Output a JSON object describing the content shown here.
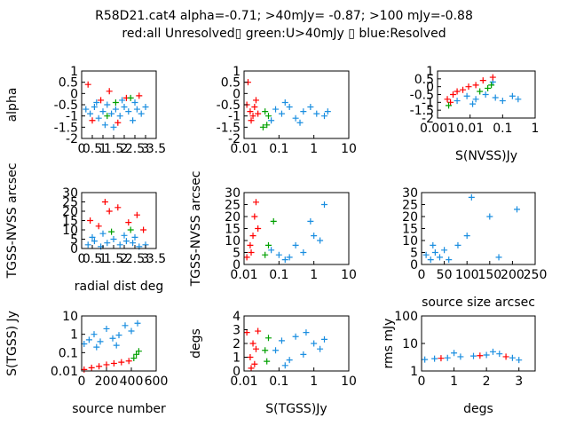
{
  "title_line1": "R58D21.cat4 alpha=-0.71; >40mJy= -0.87; >100 mJy=-0.88",
  "title_line2": "red:all Unresolved▯ green:U>40mJy ▯ blue:Resolved",
  "colors": {
    "red": "#ff0000",
    "green": "#00a000",
    "blue": "#1a8ee0"
  },
  "chart_data": [
    {
      "type": "scatter",
      "ylabel": "alpha",
      "xlabel": "",
      "xscale": "linear",
      "xlim": [
        0,
        3.5
      ],
      "ylim": [
        -2,
        1
      ],
      "xticks": [
        "0",
        "0.5",
        "1",
        "1.5",
        "2",
        "2.5",
        "3",
        "3.5"
      ],
      "yticks": [
        "-2",
        "-1.5",
        "-1",
        "-0.5",
        "0",
        "0.5",
        "1"
      ],
      "series": [
        {
          "color": "blue",
          "points": [
            [
              0.2,
              -0.7
            ],
            [
              0.4,
              -0.9
            ],
            [
              0.6,
              -0.6
            ],
            [
              0.8,
              -1.1
            ],
            [
              1.0,
              -0.8
            ],
            [
              1.2,
              -0.5
            ],
            [
              1.4,
              -0.9
            ],
            [
              1.6,
              -0.7
            ],
            [
              1.8,
              -1.0
            ],
            [
              2.0,
              -0.6
            ],
            [
              2.2,
              -0.8
            ],
            [
              2.4,
              -1.2
            ],
            [
              2.6,
              -0.7
            ],
            [
              2.8,
              -0.9
            ],
            [
              3.0,
              -0.6
            ],
            [
              1.1,
              -1.4
            ],
            [
              1.9,
              -0.3
            ],
            [
              2.5,
              -0.4
            ],
            [
              0.7,
              -0.4
            ],
            [
              1.5,
              -1.5
            ]
          ]
        },
        {
          "color": "red",
          "points": [
            [
              0.3,
              0.4
            ],
            [
              1.3,
              0.1
            ],
            [
              2.1,
              -0.2
            ],
            [
              0.9,
              -0.3
            ],
            [
              2.7,
              -0.1
            ],
            [
              1.7,
              -1.3
            ],
            [
              0.5,
              -1.2
            ]
          ]
        },
        {
          "color": "green",
          "points": [
            [
              1.2,
              -1.0
            ],
            [
              2.3,
              -0.2
            ],
            [
              1.6,
              -0.4
            ]
          ]
        }
      ]
    },
    {
      "type": "scatter",
      "ylabel": "",
      "xlabel": "",
      "xscale": "log",
      "xlim": [
        0.01,
        10
      ],
      "ylim": [
        -2,
        1
      ],
      "xticks": [
        "0.01",
        "0.1",
        "1",
        "10"
      ],
      "yticks": [
        "-2",
        "-1.5",
        "-1",
        "-0.5",
        "0",
        "0.5",
        "1"
      ],
      "series": [
        {
          "color": "blue",
          "points": [
            [
              0.08,
              -0.7
            ],
            [
              0.12,
              -0.9
            ],
            [
              0.2,
              -0.6
            ],
            [
              0.3,
              -1.1
            ],
            [
              0.5,
              -0.8
            ],
            [
              0.8,
              -0.6
            ],
            [
              1.2,
              -0.9
            ],
            [
              2.0,
              -1.0
            ],
            [
              0.06,
              -1.2
            ],
            [
              0.15,
              -0.4
            ],
            [
              0.4,
              -1.3
            ],
            [
              2.5,
              -0.8
            ]
          ]
        },
        {
          "color": "red",
          "points": [
            [
              0.012,
              -0.5
            ],
            [
              0.015,
              -0.8
            ],
            [
              0.018,
              -1.0
            ],
            [
              0.02,
              -0.6
            ],
            [
              0.025,
              -0.9
            ],
            [
              0.013,
              0.5
            ],
            [
              0.016,
              -1.2
            ],
            [
              0.022,
              -0.3
            ]
          ]
        },
        {
          "color": "green",
          "points": [
            [
              0.04,
              -0.8
            ],
            [
              0.05,
              -1.0
            ],
            [
              0.045,
              -1.4
            ],
            [
              0.035,
              -1.5
            ]
          ]
        }
      ]
    },
    {
      "type": "scatter",
      "ylabel": "",
      "xlabel": "S(NVSS)Jy",
      "xscale": "log",
      "xlim": [
        0.001,
        1
      ],
      "ylim": [
        -2,
        1
      ],
      "xticks": [
        "0.001",
        "0.01",
        "0.1",
        "1"
      ],
      "yticks": [
        "-2",
        "-1.5",
        "-1",
        "-0.5",
        "0",
        "0.5",
        "1"
      ],
      "series": [
        {
          "color": "blue",
          "points": [
            [
              0.004,
              -0.9
            ],
            [
              0.008,
              -0.6
            ],
            [
              0.015,
              -0.8
            ],
            [
              0.03,
              -0.5
            ],
            [
              0.06,
              -0.7
            ],
            [
              0.1,
              -0.9
            ],
            [
              0.2,
              -0.6
            ],
            [
              0.3,
              -0.8
            ],
            [
              0.05,
              0.3
            ],
            [
              0.012,
              -1.1
            ]
          ]
        },
        {
          "color": "red",
          "points": [
            [
              0.002,
              -0.8
            ],
            [
              0.003,
              -0.5
            ],
            [
              0.004,
              -0.3
            ],
            [
              0.006,
              -0.2
            ],
            [
              0.009,
              0.0
            ],
            [
              0.015,
              0.1
            ],
            [
              0.025,
              0.4
            ],
            [
              0.05,
              0.6
            ],
            [
              0.0025,
              -1.0
            ]
          ]
        },
        {
          "color": "green",
          "points": [
            [
              0.02,
              -0.3
            ],
            [
              0.035,
              -0.1
            ],
            [
              0.045,
              0.1
            ],
            [
              0.0022,
              -1.2
            ]
          ]
        }
      ]
    },
    {
      "type": "scatter",
      "ylabel": "TGSS-NVSS arcsec",
      "xlabel": "radial dist deg",
      "xscale": "linear",
      "xlim": [
        0,
        3.5
      ],
      "ylim": [
        0,
        30
      ],
      "xticks": [
        "0",
        "0.5",
        "1",
        "1.5",
        "2",
        "2.5",
        "3",
        "3.5"
      ],
      "yticks": [
        "0",
        "5",
        "10",
        "15",
        "20",
        "25",
        "30"
      ],
      "series": [
        {
          "color": "blue",
          "points": [
            [
              0.3,
              2
            ],
            [
              0.6,
              4
            ],
            [
              0.9,
              1
            ],
            [
              1.2,
              3
            ],
            [
              1.5,
              5
            ],
            [
              1.8,
              2
            ],
            [
              2.1,
              4
            ],
            [
              2.4,
              3
            ],
            [
              2.7,
              1
            ],
            [
              3.0,
              2
            ],
            [
              1.0,
              8
            ],
            [
              2.0,
              7
            ],
            [
              0.5,
              6
            ],
            [
              2.5,
              6
            ]
          ]
        },
        {
          "color": "red",
          "points": [
            [
              0.4,
              15
            ],
            [
              0.8,
              12
            ],
            [
              1.3,
              20
            ],
            [
              1.7,
              22
            ],
            [
              2.2,
              14
            ],
            [
              2.6,
              18
            ],
            [
              1.1,
              25
            ],
            [
              2.9,
              10
            ]
          ]
        },
        {
          "color": "green",
          "points": [
            [
              1.4,
              9
            ],
            [
              2.3,
              10
            ]
          ]
        }
      ]
    },
    {
      "type": "scatter",
      "ylabel": "TGSS-NVSS arcsec",
      "xlabel": "",
      "xscale": "log",
      "xlim": [
        0.01,
        10
      ],
      "ylim": [
        0,
        30
      ],
      "xticks": [
        "0.01",
        "0.1",
        "1",
        "10"
      ],
      "yticks": [
        "0",
        "5",
        "10",
        "15",
        "20",
        "25",
        "30"
      ],
      "series": [
        {
          "color": "blue",
          "points": [
            [
              0.06,
              6
            ],
            [
              0.1,
              4
            ],
            [
              0.2,
              3
            ],
            [
              0.3,
              8
            ],
            [
              0.5,
              5
            ],
            [
              1.0,
              12
            ],
            [
              2.0,
              25
            ],
            [
              0.8,
              18
            ],
            [
              0.15,
              2
            ],
            [
              1.5,
              10
            ]
          ]
        },
        {
          "color": "red",
          "points": [
            [
              0.012,
              3
            ],
            [
              0.015,
              8
            ],
            [
              0.018,
              12
            ],
            [
              0.02,
              20
            ],
            [
              0.022,
              26
            ],
            [
              0.016,
              5
            ],
            [
              0.025,
              15
            ]
          ]
        },
        {
          "color": "green",
          "points": [
            [
              0.04,
              4
            ],
            [
              0.05,
              8
            ],
            [
              0.07,
              18
            ]
          ]
        }
      ]
    },
    {
      "type": "scatter",
      "ylabel": "",
      "xlabel": "source size arcsec",
      "xscale": "linear",
      "xlim": [
        0,
        250
      ],
      "ylim": [
        0,
        30
      ],
      "xticks": [
        "0",
        "50",
        "100",
        "150",
        "200",
        "250"
      ],
      "yticks": [
        "0",
        "5",
        "10",
        "15",
        "20",
        "25",
        "30"
      ],
      "series": [
        {
          "color": "blue",
          "points": [
            [
              10,
              4
            ],
            [
              20,
              2
            ],
            [
              30,
              5
            ],
            [
              40,
              3
            ],
            [
              50,
              6
            ],
            [
              60,
              2
            ],
            [
              80,
              8
            ],
            [
              100,
              12
            ],
            [
              110,
              28
            ],
            [
              150,
              20
            ],
            [
              210,
              23
            ],
            [
              170,
              3
            ],
            [
              25,
              8
            ]
          ]
        },
        {
          "color": "red",
          "points": []
        },
        {
          "color": "green",
          "points": []
        }
      ]
    },
    {
      "type": "scatter",
      "ylabel": "S(TGSS) Jy",
      "xlabel": "source number",
      "xscale": "linear",
      "yscale": "log",
      "xlim": [
        0,
        600
      ],
      "ylim": [
        0.01,
        10
      ],
      "xticks": [
        "0",
        "200",
        "400",
        "600"
      ],
      "yticks": [
        "0.01",
        "0.1",
        "1",
        "10"
      ],
      "series": [
        {
          "color": "blue",
          "points": [
            [
              20,
              0.3
            ],
            [
              60,
              0.5
            ],
            [
              100,
              1.0
            ],
            [
              150,
              0.4
            ],
            [
              200,
              2.0
            ],
            [
              250,
              0.6
            ],
            [
              300,
              0.9
            ],
            [
              350,
              3.0
            ],
            [
              400,
              1.5
            ],
            [
              450,
              4.0
            ],
            [
              120,
              0.2
            ],
            [
              280,
              0.25
            ]
          ]
        },
        {
          "color": "red",
          "points": [
            [
              20,
              0.012
            ],
            [
              80,
              0.015
            ],
            [
              140,
              0.018
            ],
            [
              200,
              0.022
            ],
            [
              260,
              0.026
            ],
            [
              320,
              0.03
            ],
            [
              380,
              0.035
            ]
          ]
        },
        {
          "color": "green",
          "points": [
            [
              420,
              0.05
            ],
            [
              440,
              0.08
            ],
            [
              460,
              0.12
            ]
          ]
        }
      ]
    },
    {
      "type": "scatter",
      "ylabel": "degs",
      "xlabel": "S(TGSS)Jy",
      "xscale": "log",
      "xlim": [
        0.01,
        10
      ],
      "ylim": [
        0,
        4
      ],
      "xticks": [
        "0.01",
        "0.1",
        "1",
        "10"
      ],
      "yticks": [
        "0",
        "1",
        "2",
        "3",
        "4"
      ],
      "series": [
        {
          "color": "blue",
          "points": [
            [
              0.08,
              1.5
            ],
            [
              0.12,
              2.2
            ],
            [
              0.2,
              0.8
            ],
            [
              0.3,
              2.5
            ],
            [
              0.5,
              1.2
            ],
            [
              1.0,
              2.0
            ],
            [
              2.0,
              2.3
            ],
            [
              0.15,
              0.4
            ],
            [
              0.6,
              2.8
            ],
            [
              1.5,
              1.6
            ]
          ]
        },
        {
          "color": "red",
          "points": [
            [
              0.012,
              2.8
            ],
            [
              0.015,
              1.0
            ],
            [
              0.018,
              2.0
            ],
            [
              0.02,
              0.5
            ],
            [
              0.022,
              1.6
            ],
            [
              0.025,
              2.9
            ],
            [
              0.016,
              0.2
            ]
          ]
        },
        {
          "color": "green",
          "points": [
            [
              0.04,
              1.5
            ],
            [
              0.05,
              2.4
            ],
            [
              0.045,
              0.7
            ]
          ]
        }
      ]
    },
    {
      "type": "scatter",
      "ylabel": "rms mJy",
      "xlabel": "degs",
      "xscale": "linear",
      "yscale": "log",
      "xlim": [
        0,
        3.5
      ],
      "ylim": [
        1,
        100
      ],
      "xticks": [
        "0",
        "1",
        "2",
        "3"
      ],
      "yticks": [
        "1",
        "10",
        "100"
      ],
      "series": [
        {
          "color": "blue",
          "points": [
            [
              0.1,
              2.6
            ],
            [
              0.4,
              2.8
            ],
            [
              0.8,
              3.0
            ],
            [
              1.2,
              3.3
            ],
            [
              1.6,
              3.5
            ],
            [
              2.0,
              3.8
            ],
            [
              2.4,
              4.2
            ],
            [
              2.8,
              3.0
            ],
            [
              3.0,
              2.5
            ],
            [
              1.0,
              4.5
            ],
            [
              2.2,
              5.0
            ]
          ]
        },
        {
          "color": "red",
          "points": [
            [
              0.6,
              2.9
            ],
            [
              1.8,
              3.6
            ],
            [
              2.6,
              3.3
            ]
          ]
        },
        {
          "color": "green",
          "points": []
        }
      ]
    }
  ]
}
